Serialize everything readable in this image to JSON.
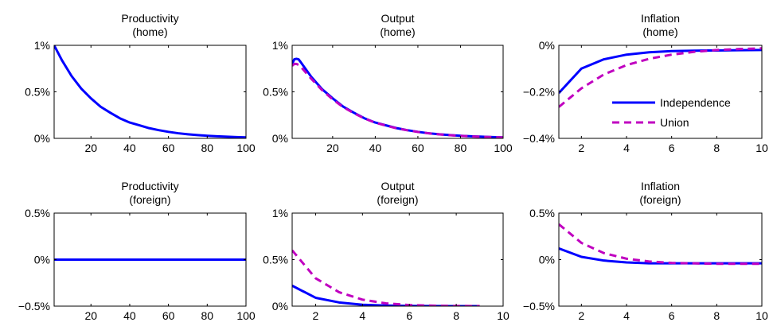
{
  "legend": {
    "entries": [
      {
        "name": "Independence",
        "color": "#0000ff",
        "dash": "solid"
      },
      {
        "name": "Union",
        "color": "#c000c0",
        "dash": "dashed"
      }
    ],
    "placement": "inside lower-right of top-right panel"
  },
  "chart_data": [
    {
      "type": "line",
      "title": [
        "Productivity",
        "(home)"
      ],
      "xlabel": "",
      "ylabel": "",
      "xlim": [
        1,
        100
      ],
      "ylim": [
        0,
        1
      ],
      "xticks": [
        20,
        40,
        60,
        80,
        100
      ],
      "yticks": [
        0,
        0.5,
        1
      ],
      "ytick_labels": [
        "0%",
        "0.5%",
        "1%"
      ],
      "grid": false,
      "series": [
        {
          "name": "Independence",
          "color": "#0000ff",
          "dash": "solid",
          "x": [
            1,
            5,
            10,
            15,
            20,
            25,
            30,
            35,
            40,
            45,
            50,
            55,
            60,
            65,
            70,
            75,
            80,
            85,
            90,
            95,
            100
          ],
          "y": [
            1.0,
            0.84,
            0.67,
            0.535,
            0.43,
            0.34,
            0.275,
            0.215,
            0.17,
            0.14,
            0.11,
            0.088,
            0.07,
            0.055,
            0.044,
            0.035,
            0.028,
            0.022,
            0.018,
            0.014,
            0.011
          ]
        }
      ]
    },
    {
      "type": "line",
      "title": [
        "Output",
        "(home)"
      ],
      "xlabel": "",
      "ylabel": "",
      "xlim": [
        1,
        100
      ],
      "ylim": [
        0,
        1
      ],
      "xticks": [
        20,
        40,
        60,
        80,
        100
      ],
      "yticks": [
        0,
        0.5,
        1
      ],
      "ytick_labels": [
        "0%",
        "0.5%",
        "1%"
      ],
      "grid": false,
      "series": [
        {
          "name": "Independence",
          "color": "#0000ff",
          "dash": "solid",
          "x": [
            1,
            2,
            3,
            4,
            5,
            10,
            15,
            20,
            25,
            30,
            35,
            40,
            45,
            50,
            55,
            60,
            65,
            70,
            75,
            80,
            85,
            90,
            95,
            100
          ],
          "y": [
            0.8,
            0.85,
            0.855,
            0.85,
            0.82,
            0.66,
            0.53,
            0.43,
            0.34,
            0.275,
            0.215,
            0.17,
            0.14,
            0.11,
            0.088,
            0.07,
            0.055,
            0.044,
            0.035,
            0.028,
            0.022,
            0.018,
            0.014,
            0.011
          ]
        },
        {
          "name": "Union",
          "color": "#c000c0",
          "dash": "dashed",
          "x": [
            1,
            2,
            3,
            4,
            5,
            10,
            15,
            20,
            25,
            30,
            35,
            40,
            45,
            50,
            55,
            60,
            65,
            70,
            75,
            80,
            85,
            90,
            95,
            100
          ],
          "y": [
            0.78,
            0.8,
            0.8,
            0.79,
            0.77,
            0.64,
            0.52,
            0.42,
            0.335,
            0.27,
            0.213,
            0.168,
            0.138,
            0.108,
            0.087,
            0.069,
            0.054,
            0.043,
            0.034,
            0.027,
            0.021,
            0.017,
            0.013,
            0.01
          ]
        }
      ]
    },
    {
      "type": "line",
      "title": [
        "Inflation",
        "(home)"
      ],
      "xlabel": "",
      "ylabel": "",
      "xlim": [
        1,
        10
      ],
      "ylim": [
        -0.4,
        0
      ],
      "xticks": [
        2,
        4,
        6,
        8,
        10
      ],
      "yticks": [
        -0.4,
        -0.2,
        0
      ],
      "ytick_labels": [
        "−0.4%",
        "−0.2%",
        "0%"
      ],
      "grid": false,
      "series": [
        {
          "name": "Independence",
          "color": "#0000ff",
          "dash": "solid",
          "x": [
            1,
            2,
            3,
            4,
            5,
            6,
            7,
            8,
            9,
            10
          ],
          "y": [
            -0.205,
            -0.1,
            -0.06,
            -0.04,
            -0.03,
            -0.025,
            -0.023,
            -0.022,
            -0.021,
            -0.02
          ]
        },
        {
          "name": "Union",
          "color": "#c000c0",
          "dash": "dashed",
          "x": [
            1,
            2,
            3,
            4,
            5,
            6,
            7,
            8,
            9,
            10
          ],
          "y": [
            -0.265,
            -0.185,
            -0.125,
            -0.085,
            -0.058,
            -0.04,
            -0.028,
            -0.02,
            -0.016,
            -0.013
          ]
        }
      ],
      "legend": "lower-right"
    },
    {
      "type": "line",
      "title": [
        "Productivity",
        "(foreign)"
      ],
      "xlabel": "",
      "ylabel": "",
      "xlim": [
        1,
        100
      ],
      "ylim": [
        -0.5,
        0.5
      ],
      "xticks": [
        20,
        40,
        60,
        80,
        100
      ],
      "yticks": [
        -0.5,
        0,
        0.5
      ],
      "ytick_labels": [
        "−0.5%",
        "0%",
        "0.5%"
      ],
      "grid": false,
      "series": [
        {
          "name": "Independence",
          "color": "#0000ff",
          "dash": "solid",
          "x": [
            1,
            100
          ],
          "y": [
            0,
            0
          ]
        }
      ]
    },
    {
      "type": "line",
      "title": [
        "Output",
        "(foreign)"
      ],
      "xlabel": "",
      "ylabel": "",
      "xlim": [
        1,
        10
      ],
      "ylim": [
        0,
        1
      ],
      "xticks": [
        2,
        4,
        6,
        8,
        10
      ],
      "yticks": [
        0,
        0.5,
        1
      ],
      "ytick_labels": [
        "0%",
        "0.5%",
        "1%"
      ],
      "grid": false,
      "series": [
        {
          "name": "Independence",
          "color": "#0000ff",
          "dash": "solid",
          "x": [
            1,
            2,
            3,
            4,
            5,
            6,
            7,
            8,
            9
          ],
          "y": [
            0.22,
            0.09,
            0.04,
            0.015,
            0.006,
            0.002,
            0.001,
            0.0,
            0.0
          ]
        },
        {
          "name": "Union",
          "color": "#c000c0",
          "dash": "dashed",
          "x": [
            1,
            2,
            3,
            4,
            5,
            6,
            7,
            8,
            9
          ],
          "y": [
            0.6,
            0.3,
            0.15,
            0.07,
            0.03,
            0.012,
            0.005,
            0.002,
            0.001
          ]
        }
      ]
    },
    {
      "type": "line",
      "title": [
        "Inflation",
        "(foreign)"
      ],
      "xlabel": "",
      "ylabel": "",
      "xlim": [
        1,
        10
      ],
      "ylim": [
        -0.5,
        0.5
      ],
      "xticks": [
        2,
        4,
        6,
        8,
        10
      ],
      "yticks": [
        -0.5,
        0,
        0.5
      ],
      "ytick_labels": [
        "−0.5%",
        "0%",
        "0.5%"
      ],
      "grid": false,
      "series": [
        {
          "name": "Independence",
          "color": "#0000ff",
          "dash": "solid",
          "x": [
            1,
            2,
            3,
            4,
            5,
            6,
            7,
            8,
            9,
            10
          ],
          "y": [
            0.12,
            0.03,
            -0.01,
            -0.03,
            -0.04,
            -0.04,
            -0.04,
            -0.04,
            -0.04,
            -0.04
          ]
        },
        {
          "name": "Union",
          "color": "#c000c0",
          "dash": "dashed",
          "x": [
            1,
            2,
            3,
            4,
            5,
            6,
            7,
            8,
            9,
            10
          ],
          "y": [
            0.38,
            0.18,
            0.07,
            0.01,
            -0.02,
            -0.035,
            -0.04,
            -0.045,
            -0.045,
            -0.045
          ]
        }
      ]
    }
  ]
}
